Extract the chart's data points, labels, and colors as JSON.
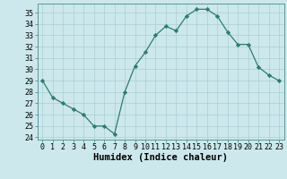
{
  "x": [
    0,
    1,
    2,
    3,
    4,
    5,
    6,
    7,
    8,
    9,
    10,
    11,
    12,
    13,
    14,
    15,
    16,
    17,
    18,
    19,
    20,
    21,
    22,
    23
  ],
  "y": [
    29,
    27.5,
    27,
    26.5,
    26,
    25,
    25,
    24.3,
    28,
    30.3,
    31.5,
    33,
    33.8,
    33.4,
    34.7,
    35.3,
    35.3,
    34.7,
    33.3,
    32.2,
    32.2,
    30.2,
    29.5,
    29
  ],
  "xlabel": "Humidex (Indice chaleur)",
  "xlim": [
    -0.5,
    23.5
  ],
  "ylim": [
    23.8,
    35.8
  ],
  "yticks": [
    24,
    25,
    26,
    27,
    28,
    29,
    30,
    31,
    32,
    33,
    34,
    35
  ],
  "xticks": [
    0,
    1,
    2,
    3,
    4,
    5,
    6,
    7,
    8,
    9,
    10,
    11,
    12,
    13,
    14,
    15,
    16,
    17,
    18,
    19,
    20,
    21,
    22,
    23
  ],
  "line_color": "#2d7d6e",
  "marker": "D",
  "marker_size": 2.2,
  "bg_color": "#cce8ec",
  "grid_color": "#aacdd4",
  "label_fontsize": 7.5,
  "tick_fontsize": 6.0
}
